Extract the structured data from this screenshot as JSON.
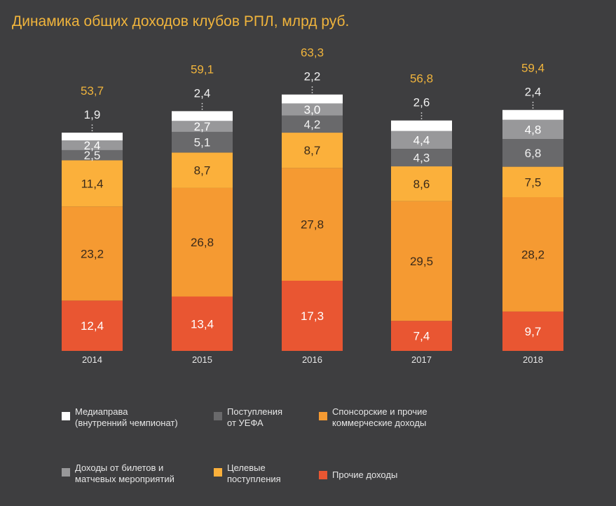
{
  "title": "Динамика общих доходов клубов РПЛ, млрд руб.",
  "chart_data": {
    "type": "bar",
    "stacked": true,
    "title": "Динамика общих доходов клубов РПЛ, млрд руб.",
    "xlabel": "",
    "ylabel": "",
    "unit": "млрд руб.",
    "categories": [
      "2014",
      "2015",
      "2016",
      "2017",
      "2018"
    ],
    "totals": [
      "53,7",
      "59,1",
      "63,3",
      "56,8",
      "59,4"
    ],
    "series": [
      {
        "name": "Прочие доходы",
        "color": "#e95632",
        "label_color": "#ffffff",
        "values": [
          12.4,
          13.4,
          17.3,
          7.4,
          9.7
        ],
        "labels": [
          "12,4",
          "13,4",
          "17,3",
          "7,4",
          "9,7"
        ]
      },
      {
        "name": "Спонсорские и прочие коммерческие доходы",
        "color": "#f59a32",
        "label_color": "#3a2a1a",
        "values": [
          23.2,
          26.8,
          27.8,
          29.5,
          28.2
        ],
        "labels": [
          "23,2",
          "26,8",
          "27,8",
          "29,5",
          "28,2"
        ]
      },
      {
        "name": "Целевые поступления",
        "color": "#fbb03b",
        "label_color": "#3a2a1a",
        "values": [
          11.4,
          8.7,
          8.7,
          8.6,
          7.5
        ],
        "labels": [
          "11,4",
          "8,7",
          "8,7",
          "8,6",
          "7,5"
        ]
      },
      {
        "name": "Поступления от УЕФА",
        "color": "#69696b",
        "label_color": "#f0f0f0",
        "values": [
          2.5,
          5.1,
          4.2,
          4.3,
          6.8
        ],
        "labels": [
          "2,5",
          "5,1",
          "4,2",
          "4,3",
          "6,8"
        ]
      },
      {
        "name": "Доходы от билетов и матчевых мероприятий",
        "color": "#98989a",
        "label_color": "#ffffff",
        "values": [
          2.4,
          2.7,
          3.0,
          4.4,
          4.8
        ],
        "labels": [
          "2,4",
          "2,7",
          "3,0",
          "4,4",
          "4,8"
        ]
      },
      {
        "name": "Медиаправа (внутренний чемпионат)",
        "color": "#ffffff",
        "label_color": "#f0f0f0",
        "values": [
          1.9,
          2.4,
          2.2,
          2.6,
          2.4
        ],
        "labels": [
          "1,9",
          "2,4",
          "2,2",
          "2,6",
          "2,4"
        ],
        "label_outside": true
      }
    ],
    "total_color": "#f0b43c",
    "legend": {
      "position": "bottom",
      "items": [
        {
          "label": "Медиаправа\n(внутренний чемпионат)",
          "color": "#ffffff"
        },
        {
          "label": "Поступления\nот УЕФА",
          "color": "#69696b"
        },
        {
          "label": "Спонсорские и прочие\nкоммерческие доходы",
          "color": "#f59a32"
        },
        {
          "label": "Доходы от билетов и\nматчевых мероприятий",
          "color": "#98989a"
        },
        {
          "label": "Целевые\nпоступления",
          "color": "#fbb03b"
        },
        {
          "label": "Прочие доходы",
          "color": "#e95632"
        }
      ]
    },
    "grid": false
  }
}
